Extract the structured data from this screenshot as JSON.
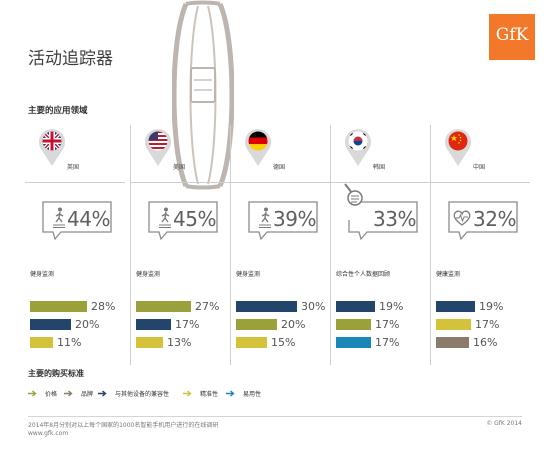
{
  "header": {
    "title": "活动追踪器",
    "subtitle": "主要的应用领域",
    "logo_text": "GfK"
  },
  "colors": {
    "olive": "#9aa13a",
    "navy": "#23456c",
    "yellow": "#d4c23b",
    "blue": "#1b87b8",
    "taupe": "#8a7b6b",
    "orange": "#f3782a"
  },
  "countries": [
    {
      "name": "英国",
      "flag": "uk-flag",
      "percent": "44%",
      "icon": "person-walking-icon",
      "category": "健身监测",
      "bars": [
        {
          "value": 28,
          "label": "28%",
          "color": "#9aa13a"
        },
        {
          "value": 20,
          "label": "20%",
          "color": "#23456c"
        },
        {
          "value": 11,
          "label": "11%",
          "color": "#d4c23b"
        }
      ]
    },
    {
      "name": "美国",
      "flag": "us-flag",
      "percent": "45%",
      "icon": "person-walking-icon",
      "category": "健身监测",
      "bars": [
        {
          "value": 27,
          "label": "27%",
          "color": "#9aa13a"
        },
        {
          "value": 17,
          "label": "17%",
          "color": "#23456c"
        },
        {
          "value": 13,
          "label": "13%",
          "color": "#d4c23b"
        }
      ]
    },
    {
      "name": "德国",
      "flag": "germany-flag",
      "percent": "39%",
      "icon": "person-walking-icon",
      "category": "健身监测",
      "bars": [
        {
          "value": 30,
          "label": "30%",
          "color": "#23456c"
        },
        {
          "value": 20,
          "label": "20%",
          "color": "#9aa13a"
        },
        {
          "value": 15,
          "label": "15%",
          "color": "#d4c23b"
        }
      ]
    },
    {
      "name": "韩国",
      "flag": "korea-flag",
      "percent": "33%",
      "icon": "magnifier-icon",
      "category": "综合性个人数据回顾",
      "bars": [
        {
          "value": 19,
          "label": "19%",
          "color": "#23456c"
        },
        {
          "value": 17,
          "label": "17%",
          "color": "#9aa13a"
        },
        {
          "value": 17,
          "label": "17%",
          "color": "#1b87b8"
        }
      ]
    },
    {
      "name": "中国",
      "flag": "china-flag",
      "percent": "32%",
      "icon": "heart-pulse-icon",
      "category": "健康监测",
      "bars": [
        {
          "value": 19,
          "label": "19%",
          "color": "#23456c"
        },
        {
          "value": 17,
          "label": "17%",
          "color": "#d4c23b"
        },
        {
          "value": 16,
          "label": "16%",
          "color": "#8a7b6b"
        }
      ]
    }
  ],
  "criteria": {
    "title": "主要的购买标准",
    "items": [
      {
        "label": "价格",
        "color": "#9aa13a"
      },
      {
        "label": "品牌",
        "color": "#8a7b6b"
      },
      {
        "label": "与其他设备的兼容性",
        "color": "#23456c"
      },
      {
        "label": "精准性",
        "color": "#d4c23b"
      },
      {
        "label": "易用性",
        "color": "#1b87b8"
      }
    ]
  },
  "footer": {
    "note": "2014年8月分别对以上每个国家的1000名智能手机用户进行的在线调研",
    "url": "www.gfk.com",
    "copyright": "© GfK 2014"
  }
}
